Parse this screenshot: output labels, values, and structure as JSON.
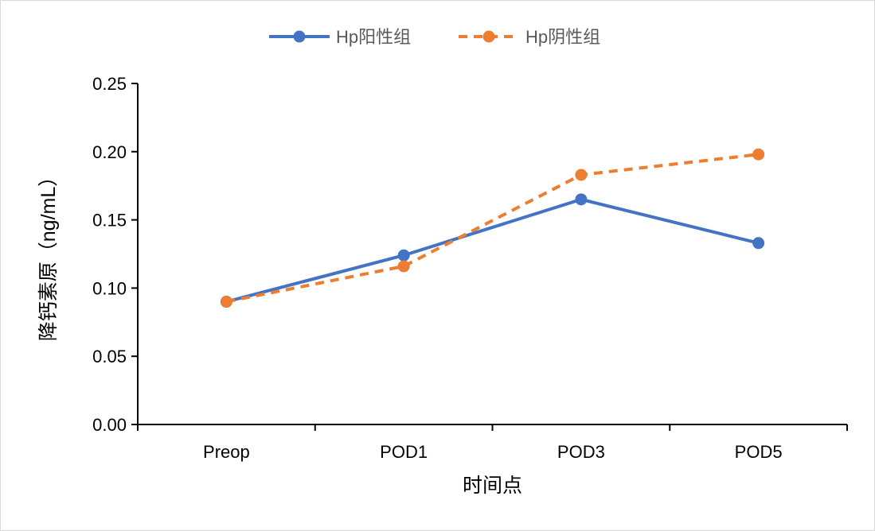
{
  "chart_data": {
    "type": "line",
    "title": "",
    "xlabel": "时间点",
    "ylabel": "降钙素原（ng/mL）",
    "categories": [
      "Preop",
      "POD1",
      "POD3",
      "POD5"
    ],
    "ylim": [
      0,
      0.25
    ],
    "yticks": [
      "0.00",
      "0.05",
      "0.10",
      "0.15",
      "0.20",
      "0.25"
    ],
    "grid": false,
    "legend_position": "top-center",
    "series": [
      {
        "name": "Hp阳性组",
        "values": [
          0.09,
          0.124,
          0.165,
          0.133
        ],
        "color": "#4472C4",
        "dash": "solid"
      },
      {
        "name": "Hp阴性组",
        "values": [
          0.09,
          0.116,
          0.183,
          0.198
        ],
        "color": "#ED7D31",
        "dash": "dashed"
      }
    ]
  }
}
